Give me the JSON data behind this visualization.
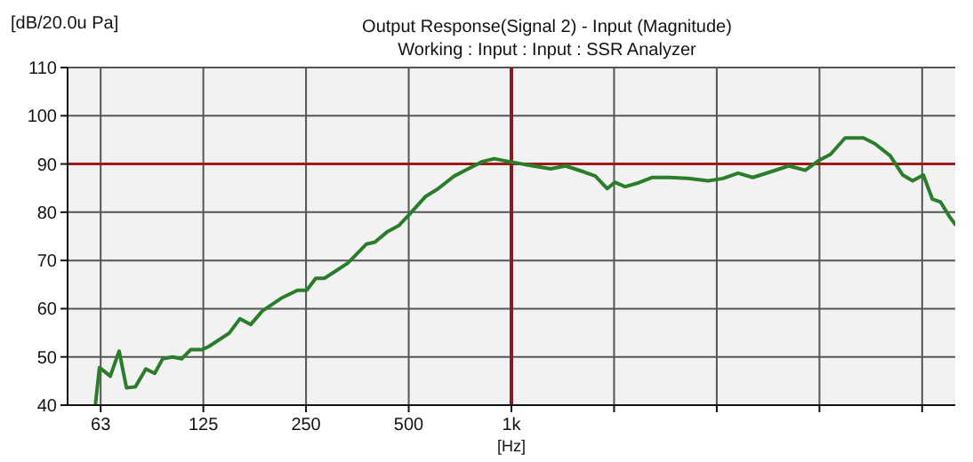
{
  "chart_data": {
    "type": "line",
    "title": "Output Response(Signal 2) - Input (Magnitude)",
    "subtitle": "Working : Input : Input : SSR Analyzer",
    "xlabel": "[Hz]",
    "ylabel": "[dB/20.0u Pa]",
    "log": "x",
    "grid": true,
    "xlim": [
      50,
      20000
    ],
    "ylim": [
      40,
      110
    ],
    "xticks": [
      {
        "value": 62.5,
        "label": "63"
      },
      125,
      250,
      500,
      {
        "value": 1000,
        "label": "1k"
      },
      {
        "value": 2000,
        "label": null
      },
      {
        "value": 4000,
        "label": null
      },
      {
        "value": 8000,
        "label": null
      },
      {
        "value": 16000,
        "label": null
      }
    ],
    "yticks": [
      40,
      50,
      60,
      70,
      80,
      90,
      100,
      110
    ],
    "ref_lines": [
      {
        "axis": "y",
        "value": 90,
        "color": "#a01818"
      },
      {
        "axis": "x",
        "value": 1000,
        "color": "#8b1a1a"
      }
    ],
    "x": [
      60.3,
      62,
      66.7,
      70.8,
      74.4,
      79,
      84.8,
      90,
      95,
      101.5,
      108,
      114.7,
      124,
      130,
      148.7,
      160,
      172,
      186,
      213,
      236,
      251,
      267,
      283,
      307,
      332,
      376,
      398,
      432,
      467,
      500,
      561,
      608,
      680,
      743,
      822,
      890,
      1000,
      1156,
      1303,
      1441,
      1626,
      1762,
      1910,
      2010,
      2155,
      2335,
      2580,
      2910,
      3290,
      3780,
      4170,
      4620,
      5100,
      5770,
      6500,
      7270,
      7950,
      8620,
      9510,
      10770,
      11630,
      12900,
      14040,
      15000,
      16130,
      17150,
      18120,
      19270,
      20000
    ],
    "series": [
      {
        "color": "#2a7d2a",
        "values": [
          40,
          47.8,
          46,
          51.2,
          43.6,
          43.8,
          47.5,
          46.6,
          49.6,
          50,
          49.6,
          51.5,
          51.5,
          52.2,
          54.9,
          57.9,
          56.7,
          59.5,
          62.3,
          63.8,
          63.8,
          66.3,
          66.3,
          67.9,
          69.5,
          73.4,
          73.8,
          75.9,
          77.2,
          79.4,
          83.3,
          84.8,
          87.5,
          88.9,
          90.5,
          91.1,
          90.4,
          89.6,
          89,
          89.6,
          88.4,
          87.5,
          84.9,
          86.2,
          85.3,
          86,
          87.2,
          87.2,
          87,
          86.5,
          87,
          88.1,
          87.2,
          88.4,
          89.6,
          88.7,
          90.7,
          92,
          95.4,
          95.4,
          94.2,
          91.7,
          87.7,
          86.5,
          87.7,
          82.7,
          82.1,
          79,
          77.5
        ]
      }
    ]
  }
}
